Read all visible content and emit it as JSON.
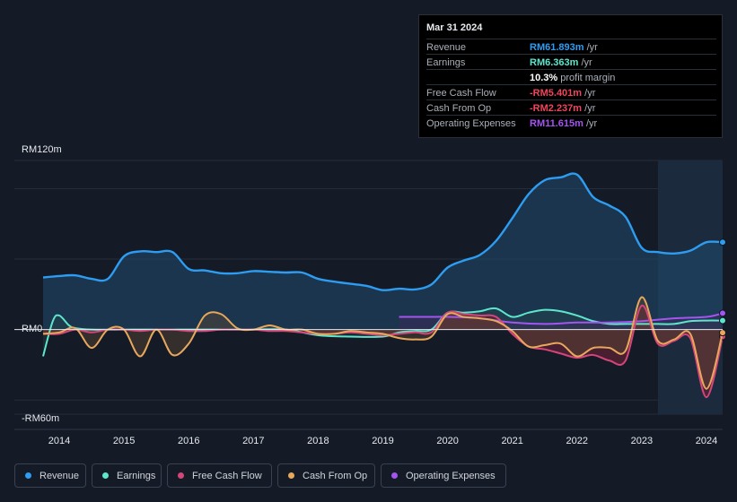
{
  "tooltip": {
    "date": "Mar 31 2024",
    "rows": [
      {
        "label": "Revenue",
        "value": "RM61.893m",
        "unit": " /yr",
        "color": "#2e9cf0"
      },
      {
        "label": "Earnings",
        "value": "RM6.363m",
        "unit": " /yr",
        "color": "#5ee6cc"
      },
      {
        "label": "",
        "value": "10.3%",
        "unit": " profit margin",
        "color": "#ffffff"
      },
      {
        "label": "Free Cash Flow",
        "value": "-RM5.401m",
        "unit": " /yr",
        "color": "#f0455a"
      },
      {
        "label": "Cash From Op",
        "value": "-RM2.237m",
        "unit": " /yr",
        "color": "#f0455a"
      },
      {
        "label": "Operating Expenses",
        "value": "RM11.615m",
        "unit": " /yr",
        "color": "#a454f0"
      }
    ]
  },
  "legend": [
    {
      "label": "Revenue",
      "color": "#2e9cf0"
    },
    {
      "label": "Earnings",
      "color": "#5ee6cc"
    },
    {
      "label": "Free Cash Flow",
      "color": "#d6457a"
    },
    {
      "label": "Cash From Op",
      "color": "#e8a85c"
    },
    {
      "label": "Operating Expenses",
      "color": "#a454f0"
    }
  ],
  "chart_data": {
    "type": "line",
    "title": "",
    "y_axis_labels": [
      "RM120m",
      "RM0",
      "-RM60m"
    ],
    "ylim": [
      -60,
      120
    ],
    "xlim": [
      2013.75,
      2024.25
    ],
    "x_ticks": [
      "2014",
      "2015",
      "2016",
      "2017",
      "2018",
      "2019",
      "2020",
      "2021",
      "2022",
      "2023",
      "2024"
    ],
    "series": [
      {
        "name": "Revenue",
        "color": "#2e9cf0",
        "x": [
          2013.75,
          2014.0,
          2014.25,
          2014.5,
          2014.75,
          2015.0,
          2015.25,
          2015.5,
          2015.75,
          2016.0,
          2016.25,
          2016.5,
          2016.75,
          2017.0,
          2017.25,
          2017.5,
          2017.75,
          2018.0,
          2018.25,
          2018.5,
          2018.75,
          2019.0,
          2019.25,
          2019.5,
          2019.75,
          2020.0,
          2020.25,
          2020.5,
          2020.75,
          2021.0,
          2021.25,
          2021.5,
          2021.75,
          2022.0,
          2022.25,
          2022.5,
          2022.75,
          2023.0,
          2023.25,
          2023.5,
          2023.75,
          2024.0,
          2024.25
        ],
        "values": [
          37,
          38,
          38.5,
          36,
          36,
          52,
          55.5,
          55,
          55,
          43,
          42,
          40,
          40,
          41.5,
          41,
          40.5,
          40.5,
          36,
          34,
          32.5,
          31,
          28,
          29,
          28.5,
          32,
          44,
          49,
          53,
          63,
          79,
          96,
          106,
          108,
          110,
          94,
          88,
          80,
          58,
          55,
          54,
          56,
          62,
          62
        ]
      },
      {
        "name": "Earnings",
        "color": "#5ee6cc",
        "x": [
          2013.75,
          2013.9,
          2014.0,
          2014.15,
          2014.25,
          2014.5,
          2015.0,
          2015.5,
          2016.0,
          2016.5,
          2017.0,
          2017.5,
          2018.0,
          2018.5,
          2019.0,
          2019.25,
          2019.5,
          2019.75,
          2020.0,
          2020.25,
          2020.5,
          2020.75,
          2021.0,
          2021.25,
          2021.5,
          2021.75,
          2022.0,
          2022.25,
          2022.5,
          2022.75,
          2023.0,
          2023.25,
          2023.5,
          2023.75,
          2024.0,
          2024.25
        ],
        "values": [
          -19,
          6,
          10,
          3,
          1,
          0,
          0,
          0,
          0,
          0,
          0,
          0,
          -4,
          -5,
          -5,
          -2,
          -1,
          0,
          12,
          12,
          13,
          15,
          9,
          12,
          14,
          13,
          10,
          6,
          4,
          4,
          4,
          4,
          4,
          6,
          6.4,
          6.4
        ]
      },
      {
        "name": "Free Cash Flow",
        "color": "#d6457a",
        "x": [
          2013.75,
          2014.0,
          2014.25,
          2014.5,
          2014.75,
          2015.0,
          2015.25,
          2015.5,
          2015.75,
          2016.0,
          2016.25,
          2016.5,
          2016.75,
          2017.0,
          2017.25,
          2017.5,
          2017.75,
          2018.0,
          2018.25,
          2018.5,
          2018.75,
          2019.0,
          2019.25,
          2019.5,
          2019.75,
          2020.0,
          2020.25,
          2020.5,
          2020.75,
          2021.0,
          2021.25,
          2021.5,
          2021.75,
          2022.0,
          2022.25,
          2022.5,
          2022.75,
          2023.0,
          2023.25,
          2023.5,
          2023.75,
          2024.0,
          2024.25
        ],
        "values": [
          -3,
          -3,
          0,
          -2,
          0,
          0,
          -1,
          0,
          0,
          -1,
          -1,
          0,
          0,
          0,
          -1,
          -1,
          -2,
          -3,
          -3,
          -2,
          -3,
          -4,
          -3,
          -2,
          -2,
          12,
          11,
          10,
          9,
          -3,
          -12,
          -14,
          -17,
          -20,
          -18,
          -22,
          -22,
          17,
          -10,
          -8,
          -6,
          -48,
          -5
        ]
      },
      {
        "name": "Cash From Op",
        "color": "#e8a85c",
        "x": [
          2013.75,
          2014.0,
          2014.25,
          2014.5,
          2014.75,
          2015.0,
          2015.25,
          2015.5,
          2015.75,
          2016.0,
          2016.25,
          2016.5,
          2016.75,
          2017.0,
          2017.25,
          2017.5,
          2017.75,
          2018.0,
          2018.25,
          2018.5,
          2018.75,
          2019.0,
          2019.25,
          2019.5,
          2019.75,
          2020.0,
          2020.25,
          2020.5,
          2020.75,
          2021.0,
          2021.25,
          2021.5,
          2021.75,
          2022.0,
          2022.25,
          2022.5,
          2022.75,
          2023.0,
          2023.25,
          2023.5,
          2023.75,
          2024.0,
          2024.25
        ],
        "values": [
          -3,
          -2,
          1,
          -13,
          0,
          0,
          -19,
          0,
          -18,
          -10,
          10,
          11,
          1,
          0,
          3,
          0,
          0,
          -3,
          -3,
          -1,
          -2,
          -3,
          -6,
          -7,
          -5,
          11,
          9,
          8,
          6,
          -1,
          -12,
          -11,
          -10,
          -19,
          -13,
          -13,
          -15,
          23,
          -8,
          -7,
          -3,
          -42,
          -2.2
        ]
      },
      {
        "name": "Operating Expenses",
        "color": "#a454f0",
        "x": [
          2019.25,
          2019.5,
          2019.75,
          2020.0,
          2020.5,
          2021.0,
          2021.5,
          2022.0,
          2022.5,
          2023.0,
          2023.5,
          2024.0,
          2024.25
        ],
        "values": [
          9,
          9,
          9,
          9,
          8,
          5,
          4,
          5,
          5,
          6,
          8,
          9,
          11.6
        ]
      }
    ]
  }
}
